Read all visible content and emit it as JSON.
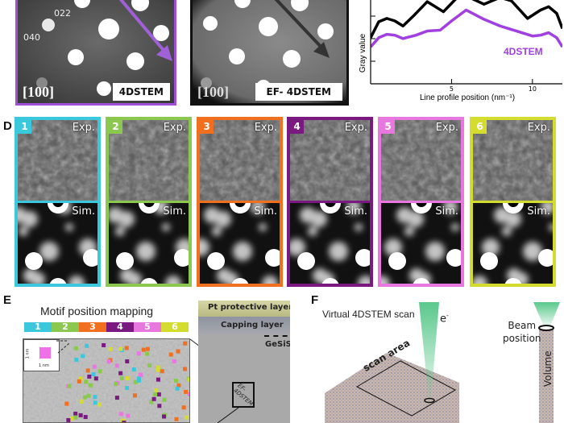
{
  "panel_c": {
    "left_image": {
      "reflections": [
        "022",
        "040"
      ],
      "zone_axis": "[100]",
      "tag": "4DSTEM",
      "border_color": "#a050d8"
    },
    "right_image": {
      "zone_axis": "[100]",
      "tag": "EF- 4DSTEM",
      "border_color": "#111111"
    }
  },
  "chart_data": {
    "type": "line",
    "xlabel": "Line profile position (nm⁻¹)",
    "ylabel": "Gray value",
    "xlim": [
      0,
      11.85
    ],
    "ylim": [
      0,
      100
    ],
    "x_ticks": [
      5,
      10
    ],
    "grid": false,
    "series": [
      {
        "name": "EF-4DSTEM",
        "color": "#000000",
        "labeled": false,
        "x": [
          0,
          0.5,
          1,
          1.5,
          2,
          2.7,
          3.5,
          4.5,
          5.3,
          6,
          7,
          8,
          8.7,
          9.7,
          10.5,
          11,
          11.5,
          11.85
        ],
        "y": [
          55,
          74,
          78,
          75,
          69,
          82,
          98,
          86,
          102,
          104,
          95,
          103,
          99,
          78,
          88,
          92,
          84,
          66
        ]
      },
      {
        "name": "4DSTEM",
        "color": "#a040e0",
        "labeled": true,
        "x": [
          0,
          0.5,
          1,
          1.5,
          2,
          2.8,
          3.5,
          4.3,
          5,
          5.9,
          7,
          8,
          9,
          10,
          10.5,
          11,
          11.5,
          11.85
        ],
        "y": [
          44,
          55,
          59,
          58,
          54,
          58,
          63,
          64,
          75,
          88,
          77,
          69,
          63,
          57,
          58,
          61,
          55,
          44
        ]
      }
    ]
  },
  "panel_d": {
    "label": "D",
    "exp_label": "Exp.",
    "sim_label": "Sim.",
    "motifs": [
      {
        "number": "1",
        "color": "#3cc8dc"
      },
      {
        "number": "2",
        "color": "#8cc850"
      },
      {
        "number": "3",
        "color": "#f07020"
      },
      {
        "number": "4",
        "color": "#7a1a80"
      },
      {
        "number": "5",
        "color": "#e878e0"
      },
      {
        "number": "6",
        "color": "#d4dc30"
      }
    ]
  },
  "panel_e": {
    "label": "E",
    "title": "Motif position mapping",
    "colorbar": [
      "1",
      "2",
      "3",
      "4",
      "5",
      "6"
    ],
    "inset_scale_x": "1 nm",
    "inset_scale_y": "1 nm",
    "layers": {
      "pt": "Pt protective layer",
      "capping": "Capping layer",
      "substrate": "GeSiSn"
    },
    "box_label": "EF-\n4DSTEM"
  },
  "panel_f": {
    "label": "F",
    "title": "Virtual 4DSTEM scan",
    "electron": "e",
    "electron_sup": "-",
    "scan_area": "scan area",
    "beam_position": "Beam\nposition",
    "volume": "Volume"
  }
}
